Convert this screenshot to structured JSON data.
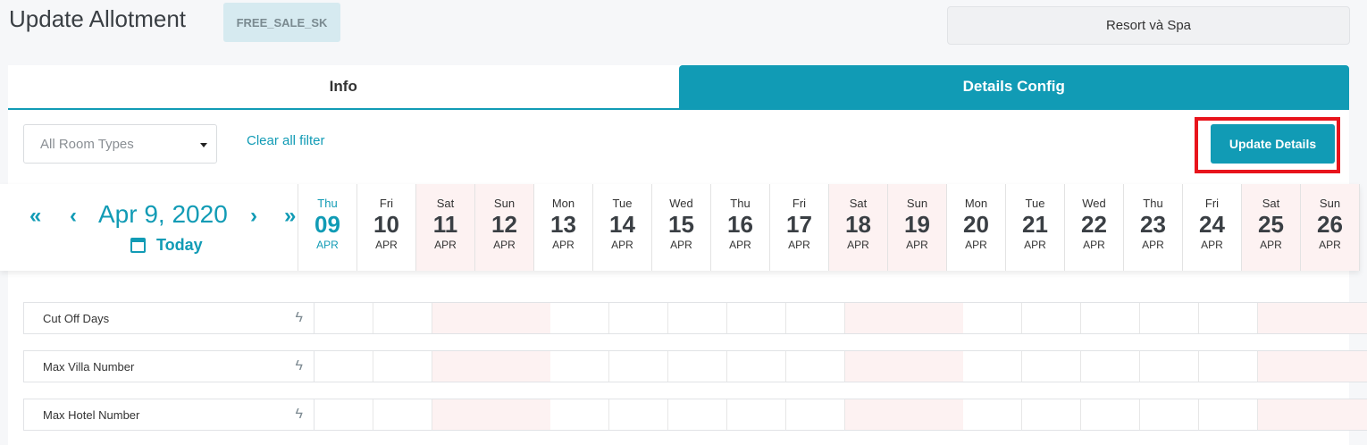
{
  "header": {
    "title": "Update Allotment",
    "code_badge": "FREE_SALE_SK",
    "property": "Resort và Spa"
  },
  "tabs": [
    {
      "label": "Info",
      "active": false
    },
    {
      "label": "Details Config",
      "active": true
    }
  ],
  "filter": {
    "room_type_placeholder": "All Room Types",
    "clear_label": "Clear all filter",
    "update_label": "Update Details"
  },
  "calendar": {
    "current_date": "Apr 9, 2020",
    "today_label": "Today",
    "accent": "#119bb5",
    "days": [
      {
        "dow": "Thu",
        "num": "09",
        "mon": "APR",
        "weekend": false,
        "current": true
      },
      {
        "dow": "Fri",
        "num": "10",
        "mon": "APR",
        "weekend": false
      },
      {
        "dow": "Sat",
        "num": "11",
        "mon": "APR",
        "weekend": true
      },
      {
        "dow": "Sun",
        "num": "12",
        "mon": "APR",
        "weekend": true
      },
      {
        "dow": "Mon",
        "num": "13",
        "mon": "APR",
        "weekend": false
      },
      {
        "dow": "Tue",
        "num": "14",
        "mon": "APR",
        "weekend": false
      },
      {
        "dow": "Wed",
        "num": "15",
        "mon": "APR",
        "weekend": false
      },
      {
        "dow": "Thu",
        "num": "16",
        "mon": "APR",
        "weekend": false
      },
      {
        "dow": "Fri",
        "num": "17",
        "mon": "APR",
        "weekend": false
      },
      {
        "dow": "Sat",
        "num": "18",
        "mon": "APR",
        "weekend": true
      },
      {
        "dow": "Sun",
        "num": "19",
        "mon": "APR",
        "weekend": true
      },
      {
        "dow": "Mon",
        "num": "20",
        "mon": "APR",
        "weekend": false
      },
      {
        "dow": "Tue",
        "num": "21",
        "mon": "APR",
        "weekend": false
      },
      {
        "dow": "Wed",
        "num": "22",
        "mon": "APR",
        "weekend": false
      },
      {
        "dow": "Thu",
        "num": "23",
        "mon": "APR",
        "weekend": false
      },
      {
        "dow": "Fri",
        "num": "24",
        "mon": "APR",
        "weekend": false
      },
      {
        "dow": "Sat",
        "num": "25",
        "mon": "APR",
        "weekend": true
      },
      {
        "dow": "Sun",
        "num": "26",
        "mon": "APR",
        "weekend": true
      }
    ]
  },
  "rows": [
    {
      "label": "Cut Off Days"
    },
    {
      "label": "Max Villa Number"
    },
    {
      "label": "Max Hotel Number"
    }
  ]
}
